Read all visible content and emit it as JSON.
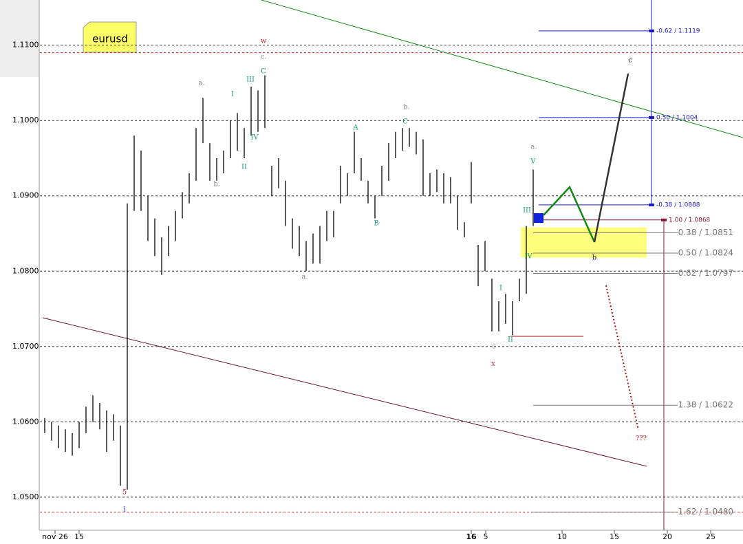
{
  "chart_data": {
    "type": "ohlc",
    "title": "eurusd",
    "x": [
      1.4,
      3.4,
      5.4,
      7.4,
      9.4,
      11.4,
      13.4,
      15.4,
      17.4,
      19.4,
      21.4,
      23.4,
      25.4,
      27.4,
      29.4,
      31.4,
      33.4,
      35.4,
      37.4,
      39.4,
      41.4,
      43.4,
      45.4,
      47.4,
      49.4,
      51.4,
      53.4,
      55.4,
      57.4,
      59.4,
      61.4,
      63.4,
      65.4,
      67.4,
      69.4,
      71.4,
      73.4,
      75.4,
      77.4,
      79.4,
      81.4,
      83.4,
      85.4,
      87.4,
      89.4,
      91.4,
      93.4,
      95.4,
      97.4,
      99.4,
      101.4,
      103.4,
      105.4,
      107.4,
      109.4,
      111.4,
      113.4,
      115.4,
      117.4,
      119.4,
      121.4,
      123.4,
      125.4,
      127.4,
      129.4,
      131.4,
      133.4,
      135.4,
      137.4,
      139.4,
      141.4,
      143.4
    ],
    "high": [
      1.0605,
      1.06,
      1.0595,
      1.059,
      1.0585,
      1.06,
      1.062,
      1.0635,
      1.0625,
      1.0615,
      1.061,
      1.0595,
      1.089,
      1.098,
      1.096,
      1.09,
      1.087,
      1.0845,
      1.086,
      1.088,
      1.0905,
      1.093,
      1.099,
      1.103,
      1.097,
      1.095,
      1.096,
      1.1,
      1.101,
      1.099,
      1.1045,
      1.104,
      1.106,
      1.094,
      1.095,
      1.092,
      1.087,
      1.086,
      1.084,
      1.085,
      1.086,
      1.088,
      1.088,
      1.094,
      1.093,
      1.0985,
      1.095,
      1.092,
      1.09,
      1.094,
      1.097,
      1.0985,
      1.099,
      1.099,
      1.0985,
      1.0975,
      1.093,
      1.0935,
      1.093,
      1.0925,
      1.09,
      1.0865,
      1.0945,
      1.0835,
      1.084,
      1.079,
      1.076,
      1.077,
      1.076,
      1.079,
      1.086,
      1.0935
    ],
    "low": [
      1.0585,
      1.0575,
      1.0565,
      1.056,
      1.0555,
      1.0565,
      1.0585,
      1.06,
      1.059,
      1.056,
      1.0575,
      1.0515,
      1.051,
      1.088,
      1.088,
      1.084,
      1.082,
      1.0795,
      1.082,
      1.084,
      1.087,
      1.089,
      1.092,
      1.097,
      1.092,
      1.092,
      1.093,
      1.095,
      1.096,
      1.095,
      1.098,
      1.0985,
      1.099,
      1.09,
      1.091,
      1.086,
      1.083,
      1.082,
      1.08,
      1.081,
      1.081,
      1.084,
      1.0845,
      1.089,
      1.09,
      1.093,
      1.092,
      1.089,
      1.087,
      1.09,
      1.092,
      1.095,
      1.096,
      1.0965,
      1.0955,
      1.09,
      1.09,
      1.0905,
      1.089,
      1.089,
      1.0855,
      1.0845,
      1.089,
      1.078,
      1.08,
      1.072,
      1.072,
      1.073,
      1.0715,
      1.076,
      1.077,
      1.086
    ],
    "xlim": [
      0,
      204.4
    ],
    "xticks": [
      {
        "value": 4.4,
        "label": "nov 26"
      },
      {
        "value": 11.4,
        "label": "15"
      },
      {
        "value": 125.4,
        "label": "16"
      },
      {
        "value": 129.6,
        "label": "5"
      },
      {
        "value": 151.8,
        "label": "10"
      },
      {
        "value": 167,
        "label": "15"
      },
      {
        "value": 182.4,
        "label": "20"
      },
      {
        "value": 195,
        "label": "25"
      }
    ],
    "ylim": [
      1.0456,
      1.116
    ],
    "yticks": [
      {
        "value": 1.05,
        "label": "1.0500"
      },
      {
        "value": 1.06,
        "label": "1.0600"
      },
      {
        "value": 1.07,
        "label": "1.0700"
      },
      {
        "value": 1.08,
        "label": "1.0800"
      },
      {
        "value": 1.09,
        "label": "1.0900"
      },
      {
        "value": 1.1,
        "label": "1.1000"
      },
      {
        "value": 1.11,
        "label": "1.1100"
      }
    ],
    "grid": true,
    "reference_lines": [
      1.109,
      1.048
    ],
    "levels": [
      {
        "label": "-0.62 / 1.1119",
        "value": 1.1119,
        "color": "#1a1acc"
      },
      {
        "label": "0.50 / 1.1004",
        "value": 1.1004,
        "color": "#1a1acc"
      },
      {
        "label": "-0.38 / 1.0888",
        "value": 1.0888,
        "color": "#1a1acc"
      },
      {
        "label": "1.00 / 1.0868",
        "value": 1.0868,
        "color": "#8b1a3a"
      },
      {
        "label": "0.38 / 1.0851",
        "value": 1.0851,
        "color": "#777777"
      },
      {
        "label": "0.50 / 1.0824",
        "value": 1.0824,
        "color": "#777777"
      },
      {
        "label": "0.62 / 1.0797",
        "value": 1.0797,
        "color": "#777777"
      },
      {
        "label": "1.38 / 1.0622",
        "value": 1.0622,
        "color": "#777777"
      },
      {
        "label": "1.62 / 1.0480",
        "value": 1.048,
        "color": "#777777"
      }
    ],
    "annotations": [
      {
        "text": "w",
        "color": "#cc2222"
      },
      {
        "text": "c.",
        "color": "#888888"
      },
      {
        "text": "C",
        "color": "#119977"
      },
      {
        "text": "a.",
        "color": "#888888"
      },
      {
        "text": "b.",
        "color": "#888888"
      },
      {
        "text": "I",
        "color": "#119977"
      },
      {
        "text": "III",
        "color": "#119977"
      },
      {
        "text": "IV",
        "color": "#119977"
      },
      {
        "text": "II",
        "color": "#119977"
      },
      {
        "text": "a.",
        "color": "#888888"
      },
      {
        "text": "A",
        "color": "#119977"
      },
      {
        "text": "B",
        "color": "#119977"
      },
      {
        "text": "b.",
        "color": "#888888"
      },
      {
        "text": "C",
        "color": "#119977"
      },
      {
        "text": "x",
        "color": "#cc2222"
      },
      {
        "text": "c",
        "color": "#888888"
      },
      {
        "text": "I",
        "color": "#119977"
      },
      {
        "text": "II",
        "color": "#119977"
      },
      {
        "text": "III",
        "color": "#119977"
      },
      {
        "text": "IV",
        "color": "#119977"
      },
      {
        "text": "V",
        "color": "#119977"
      },
      {
        "text": "a.",
        "color": "#888888"
      },
      {
        "text": "5",
        "color": "#cc2222"
      },
      {
        "text": "i",
        "color": "#1a1acc"
      },
      {
        "text": "b",
        "color": "#222222"
      },
      {
        "text": "c",
        "color": "#222222"
      },
      {
        "text": "???",
        "color": "#cc2222"
      }
    ]
  }
}
